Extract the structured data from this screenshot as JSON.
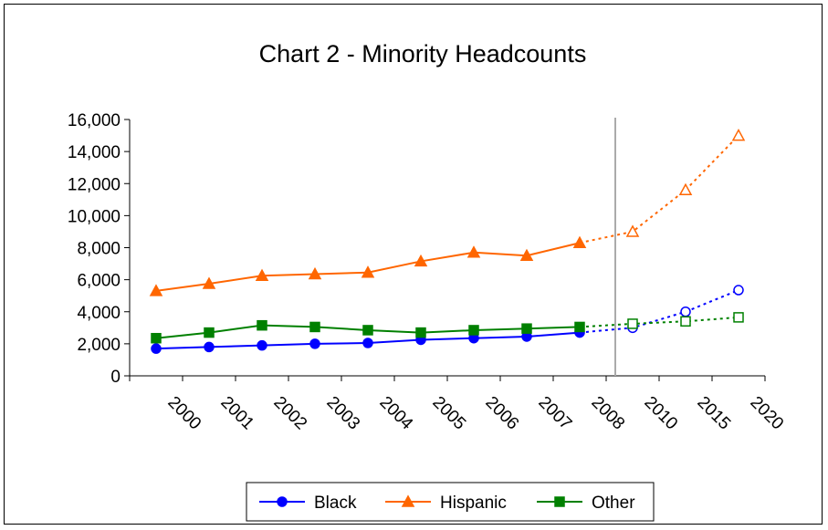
{
  "chart_data": {
    "type": "line",
    "title": "Chart 2 - Minority Headcounts",
    "categories": [
      "2000",
      "2001",
      "2002",
      "2003",
      "2004",
      "2005",
      "2006",
      "2007",
      "2008",
      "2010",
      "2015",
      "2020"
    ],
    "actual_through": "2008",
    "ylim": [
      0,
      16000
    ],
    "yticks": [
      0,
      2000,
      4000,
      6000,
      8000,
      10000,
      12000,
      14000,
      16000
    ],
    "ytick_labels": [
      "0",
      "2,000",
      "4,000",
      "6,000",
      "8,000",
      "10,000",
      "12,000",
      "14,000",
      "16,000"
    ],
    "grid": false,
    "legend_position": "bottom",
    "series": [
      {
        "name": "Black",
        "color": "#0000ff",
        "marker": "circle",
        "values": [
          1700,
          1800,
          1900,
          2000,
          2050,
          2250,
          2350,
          2450,
          2700,
          3000,
          4000,
          5350
        ]
      },
      {
        "name": "Hispanic",
        "color": "#ff6600",
        "marker": "triangle",
        "values": [
          5300,
          5750,
          6250,
          6350,
          6450,
          7150,
          7700,
          7500,
          8300,
          9000,
          11600,
          15000
        ]
      },
      {
        "name": "Other",
        "color": "#008000",
        "marker": "square",
        "values": [
          2350,
          2700,
          3150,
          3050,
          2850,
          2700,
          2850,
          2950,
          3050,
          3250,
          3400,
          3650
        ]
      }
    ]
  }
}
